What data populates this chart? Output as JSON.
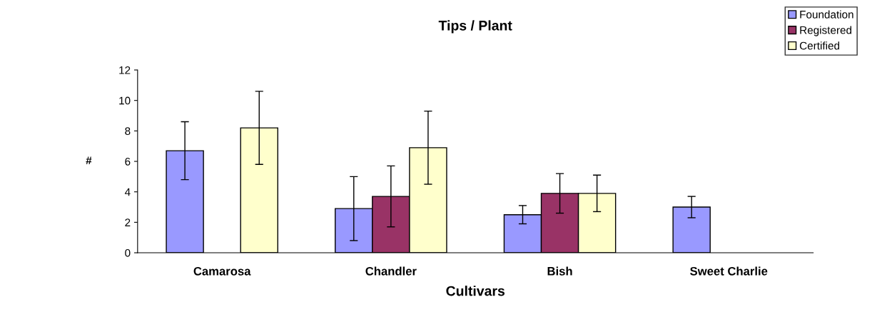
{
  "chart_data": {
    "type": "bar",
    "title": "Tips / Plant",
    "xlabel": "Cultivars",
    "ylabel": "#",
    "categories": [
      "Camarosa",
      "Chandler",
      "Bish",
      "Sweet Charlie"
    ],
    "series": [
      {
        "name": "Foundation",
        "color": "#9999ff",
        "values": [
          6.7,
          2.9,
          2.5,
          3.0
        ],
        "errors": [
          1.9,
          2.1,
          0.6,
          0.7
        ]
      },
      {
        "name": "Registered",
        "color": "#993366",
        "values": [
          null,
          3.7,
          3.9,
          null
        ],
        "errors": [
          null,
          2.0,
          1.3,
          null
        ]
      },
      {
        "name": "Certified",
        "color": "#ffffcc",
        "values": [
          8.2,
          6.9,
          3.9,
          null
        ],
        "errors": [
          2.4,
          2.4,
          1.2,
          null
        ]
      }
    ],
    "ylim": [
      0,
      12
    ],
    "yticks": [
      0,
      2,
      4,
      6,
      8,
      10,
      12
    ],
    "grid": false,
    "legend": "top right"
  }
}
